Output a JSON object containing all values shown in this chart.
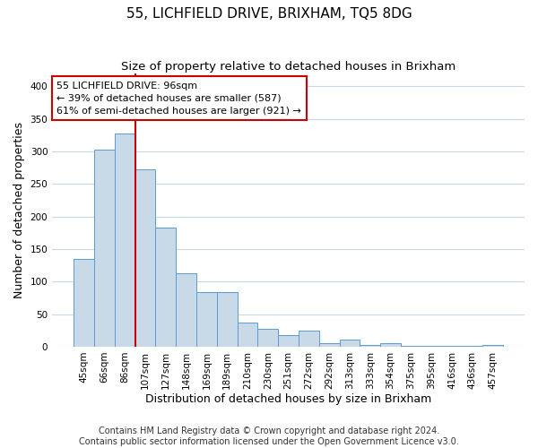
{
  "title": "55, LICHFIELD DRIVE, BRIXHAM, TQ5 8DG",
  "subtitle": "Size of property relative to detached houses in Brixham",
  "xlabel": "Distribution of detached houses by size in Brixham",
  "ylabel": "Number of detached properties",
  "bar_labels": [
    "45sqm",
    "66sqm",
    "86sqm",
    "107sqm",
    "127sqm",
    "148sqm",
    "169sqm",
    "189sqm",
    "210sqm",
    "230sqm",
    "251sqm",
    "272sqm",
    "292sqm",
    "313sqm",
    "333sqm",
    "354sqm",
    "375sqm",
    "395sqm",
    "416sqm",
    "436sqm",
    "457sqm"
  ],
  "bar_values": [
    135,
    302,
    327,
    272,
    183,
    113,
    84,
    84,
    37,
    27,
    18,
    25,
    5,
    11,
    3,
    5,
    1,
    2,
    1,
    1,
    3
  ],
  "bar_color": "#c8d9e8",
  "bar_edge_color": "#5b9bd5",
  "highlight_line_color": "#cc0000",
  "annotation_text": "55 LICHFIELD DRIVE: 96sqm\n← 39% of detached houses are smaller (587)\n61% of semi-detached houses are larger (921) →",
  "annotation_box_color": "#ffffff",
  "annotation_box_edge_color": "#cc0000",
  "ylim": [
    0,
    420
  ],
  "yticks": [
    0,
    50,
    100,
    150,
    200,
    250,
    300,
    350,
    400
  ],
  "footer_line1": "Contains HM Land Registry data © Crown copyright and database right 2024.",
  "footer_line2": "Contains public sector information licensed under the Open Government Licence v3.0.",
  "background_color": "#ffffff",
  "grid_color": "#c8d8e8",
  "title_fontsize": 11,
  "subtitle_fontsize": 9.5,
  "axis_label_fontsize": 9,
  "tick_fontsize": 7.5,
  "annotation_fontsize": 8,
  "footer_fontsize": 7
}
